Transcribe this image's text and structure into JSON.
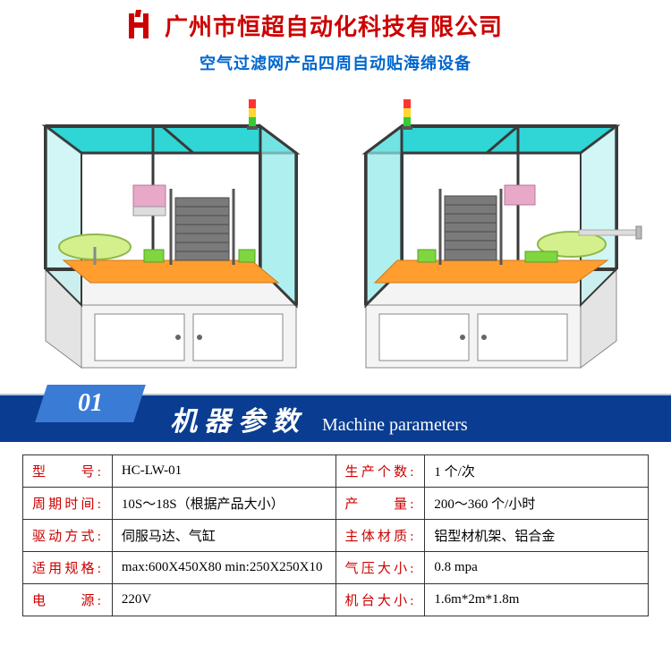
{
  "header": {
    "logo_letter": "H",
    "logo_color": "#cc0000",
    "company_name": "广州市恒超自动化科技有限公司",
    "company_color": "#cc0000",
    "subtitle": "空气过滤网产品四周自动贴海绵设备",
    "subtitle_color": "#0066cc"
  },
  "machine_render": {
    "enclosure_top_color": "#30d5d5",
    "enclosure_side_color": "#8fe8e8",
    "frame_color": "#3a3a3a",
    "cabinet_color": "#f4f4f4",
    "cabinet_edge": "#888888",
    "platform_color": "#ff9d2e",
    "inner_block_color": "#bfe86b",
    "stack_color": "#6b6b6b",
    "hmi_color": "#e8a8c8",
    "light_stack_colors": [
      "#ff3333",
      "#ffd633",
      "#33cc33"
    ]
  },
  "section": {
    "number": "01",
    "title_cn": "机器参数",
    "title_en": "Machine parameters",
    "tab_bg": "#3a7bd5",
    "banner_bg": "#0a3d91"
  },
  "specs": {
    "label_color": "#cc0000",
    "rows": [
      {
        "l1": "型　　号:",
        "v1": "HC-LW-01",
        "l2": "生产个数:",
        "v2": "1 个/次"
      },
      {
        "l1": "周期时间:",
        "v1": "10S～18S（根据产品大小）",
        "l2": "产　　量:",
        "v2": "200～360 个/小时"
      },
      {
        "l1": "驱动方式:",
        "v1": "伺服马达、气缸",
        "l2": "主体材质:",
        "v2": "铝型材机架、铝合金"
      },
      {
        "l1": "适用规格:",
        "v1": "max:600X450X80 min:250X250X10",
        "l2": "气压大小:",
        "v2": "0.8 mpa"
      },
      {
        "l1": "电　　源:",
        "v1": "220V",
        "l2": "机台大小:",
        "v2": "1.6m*2m*1.8m"
      }
    ]
  }
}
